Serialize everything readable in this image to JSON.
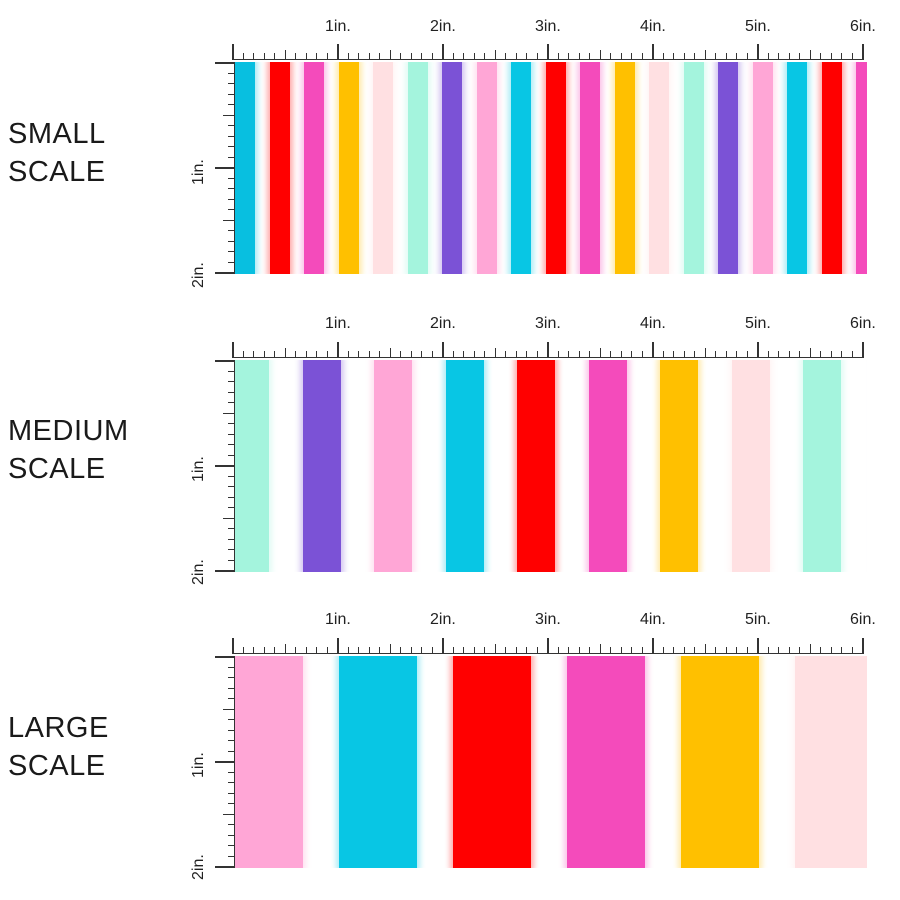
{
  "panels": [
    {
      "label_line1": "SMALL",
      "label_line2": "SCALE",
      "ruler_top_labels": [
        "1in.",
        "2in.",
        "3in.",
        "4in.",
        "5in.",
        "6in."
      ],
      "ruler_left_labels": [
        "1in.",
        "2in."
      ],
      "stripes": [
        {
          "color": "#08bfe0"
        },
        {
          "color": "#ff0000"
        },
        {
          "color": "#f44bbb"
        },
        {
          "color": "#ffc000"
        },
        {
          "color": "#ffe0e2"
        },
        {
          "color": "#a4f4dd"
        },
        {
          "color": "#7b52d6"
        },
        {
          "color": "#ffa6d6"
        },
        {
          "color": "#08c6e4"
        },
        {
          "color": "#ff0000"
        },
        {
          "color": "#f44bbb"
        },
        {
          "color": "#ffc000"
        },
        {
          "color": "#ffe0e2"
        },
        {
          "color": "#a4f4dd"
        },
        {
          "color": "#7b52d6"
        },
        {
          "color": "#ffa6d6"
        },
        {
          "color": "#08c6e4"
        },
        {
          "color": "#ff0000"
        },
        {
          "color": "#f44bbb"
        }
      ]
    },
    {
      "label_line1": "MEDIUM",
      "label_line2": "SCALE",
      "ruler_top_labels": [
        "1in.",
        "2in.",
        "3in.",
        "4in.",
        "5in.",
        "6in."
      ],
      "ruler_left_labels": [
        "1in.",
        "2in."
      ],
      "stripes": [
        {
          "color": "#a4f4dd"
        },
        {
          "color": "#7b52d6"
        },
        {
          "color": "#ffa6d6"
        },
        {
          "color": "#08c6e4"
        },
        {
          "color": "#ff0000"
        },
        {
          "color": "#f44bbb"
        },
        {
          "color": "#ffc000"
        },
        {
          "color": "#ffe0e2"
        },
        {
          "color": "#a4f4dd"
        },
        {
          "color": "#7b52d6"
        }
      ]
    },
    {
      "label_line1": "LARGE",
      "label_line2": "SCALE",
      "ruler_top_labels": [
        "1in.",
        "2in.",
        "3in.",
        "4in.",
        "5in.",
        "6in."
      ],
      "ruler_left_labels": [
        "1in.",
        "2in."
      ],
      "stripes": [
        {
          "color": "#ffa6d6"
        },
        {
          "color": "#08c6e4"
        },
        {
          "color": "#ff0000"
        },
        {
          "color": "#f44bbb"
        },
        {
          "color": "#ffc000"
        },
        {
          "color": "#ffe0e2"
        }
      ]
    }
  ]
}
